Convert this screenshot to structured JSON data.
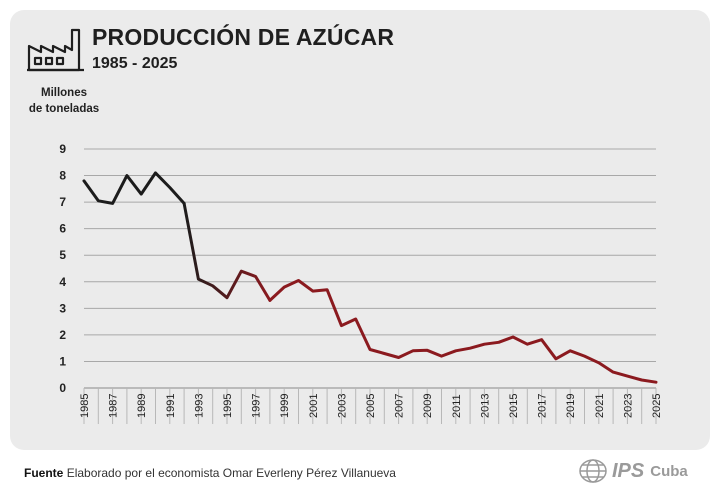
{
  "header": {
    "title": "PRODUCCIÓN DE AZÚCAR",
    "subtitle": "1985 - 2025",
    "ylabel_line1": "Millones",
    "ylabel_line2": "de toneladas"
  },
  "footer": {
    "label": "Fuente",
    "text": "Elaborado por el economista Omar Everleny Pérez Villanueva"
  },
  "logo": {
    "ips": "IPS",
    "region": "Cuba"
  },
  "colors": {
    "early": "#1c1c1c",
    "late": "#8b1a1f",
    "grid": "#a8a8a8",
    "card": "#ebebeb"
  },
  "chart_data": {
    "type": "line",
    "title": "PRODUCCIÓN DE AZÚCAR",
    "subtitle": "1985 - 2025",
    "xlabel": "",
    "ylabel": "Millones de toneladas",
    "ylim": [
      0,
      9
    ],
    "yticks": [
      0,
      1,
      2,
      3,
      4,
      5,
      6,
      7,
      8,
      9
    ],
    "xticks": [
      "1985",
      "1987",
      "1989",
      "1991",
      "1993",
      "1995",
      "1997",
      "1999",
      "2001",
      "2003",
      "2005",
      "2007",
      "2009",
      "2011",
      "2013",
      "2015",
      "2017",
      "2019",
      "2021",
      "2023",
      "2025"
    ],
    "grid": true,
    "color_change_year": 1993,
    "x": [
      1985,
      1986,
      1987,
      1988,
      1989,
      1990,
      1991,
      1992,
      1993,
      1994,
      1995,
      1996,
      1997,
      1998,
      1999,
      2000,
      2001,
      2002,
      2003,
      2004,
      2005,
      2006,
      2007,
      2008,
      2009,
      2010,
      2011,
      2012,
      2013,
      2014,
      2015,
      2016,
      2017,
      2018,
      2019,
      2020,
      2021,
      2022,
      2023,
      2024,
      2025
    ],
    "values": [
      7.8,
      7.05,
      6.95,
      8.0,
      7.3,
      8.1,
      7.55,
      6.95,
      4.1,
      3.85,
      3.4,
      4.4,
      4.2,
      3.3,
      3.8,
      4.05,
      3.65,
      3.7,
      2.35,
      2.6,
      1.45,
      1.3,
      1.15,
      1.4,
      1.42,
      1.2,
      1.4,
      1.5,
      1.65,
      1.72,
      1.92,
      1.65,
      1.82,
      1.1,
      1.4,
      1.2,
      0.95,
      0.6,
      0.45,
      0.3,
      0.22
    ]
  }
}
